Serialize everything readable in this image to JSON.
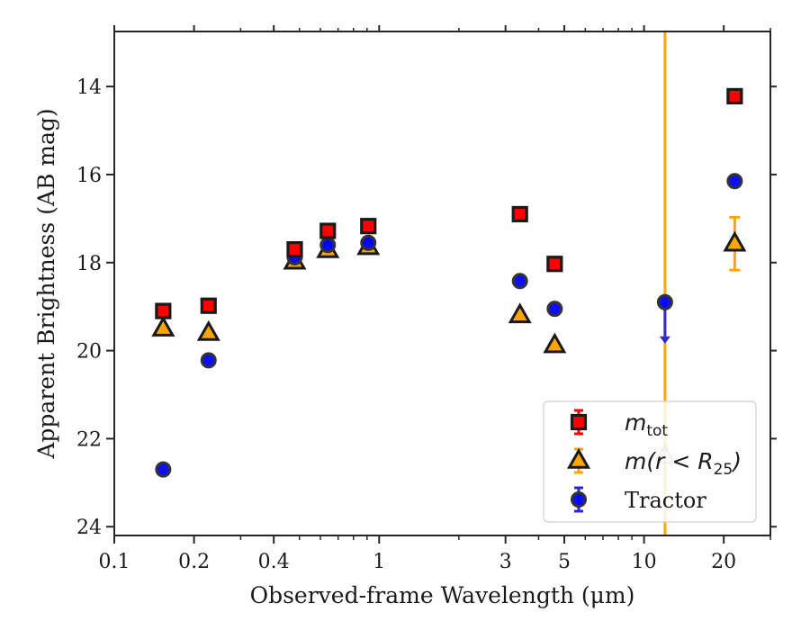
{
  "chart_data": {
    "type": "scatter",
    "xlabel": "Observed-frame Wavelength (μm)",
    "ylabel": "Apparent Brightness (AB mag)",
    "xscale": "log",
    "xlim": [
      0.1,
      30
    ],
    "ylim": [
      24.2,
      12.75
    ],
    "y_inverted": true,
    "x_ticks": [
      0.1,
      0.2,
      0.4,
      1,
      3,
      5,
      10,
      20
    ],
    "x_tick_labels": [
      "0.1",
      "0.2",
      "0.4",
      "1",
      "3",
      "5",
      "10",
      "20"
    ],
    "y_ticks": [
      14,
      16,
      18,
      20,
      22,
      24
    ],
    "y_tick_labels": [
      "14",
      "16",
      "18",
      "20",
      "22",
      "24"
    ],
    "grid": false,
    "legend_position": "lower-right",
    "series": [
      {
        "label_main": "m",
        "label_sub": "tot",
        "marker": "square",
        "color": "#ff0000",
        "edge_color": "#1a1a1a",
        "points": [
          {
            "x": 0.153,
            "y": 19.1
          },
          {
            "x": 0.227,
            "y": 18.98
          },
          {
            "x": 0.48,
            "y": 17.7
          },
          {
            "x": 0.64,
            "y": 17.28
          },
          {
            "x": 0.91,
            "y": 17.17
          },
          {
            "x": 3.4,
            "y": 16.9
          },
          {
            "x": 4.6,
            "y": 18.03
          },
          {
            "x": 22.0,
            "y": 14.22
          }
        ]
      },
      {
        "label_main": "m(r < R",
        "label_sub": "25",
        "label_end": ")",
        "marker": "triangle",
        "color": "#ffa500",
        "edge_color": "#1a1a1a",
        "points": [
          {
            "x": 0.153,
            "y": 19.5
          },
          {
            "x": 0.227,
            "y": 19.6
          },
          {
            "x": 0.48,
            "y": 17.98
          },
          {
            "x": 0.64,
            "y": 17.72
          },
          {
            "x": 0.91,
            "y": 17.65
          },
          {
            "x": 3.4,
            "y": 19.2
          },
          {
            "x": 4.6,
            "y": 19.88
          },
          {
            "x": 12.0,
            "y": 22.4,
            "err_lo": 30,
            "err_hi": 30
          },
          {
            "x": 22.0,
            "y": 17.57,
            "err_lo": 0.6,
            "err_hi": 0.6
          }
        ]
      },
      {
        "label_main": "Tractor",
        "marker": "circle",
        "color": "#0000ff",
        "edge_color": "#333333",
        "points": [
          {
            "x": 0.153,
            "y": 22.7
          },
          {
            "x": 0.227,
            "y": 20.22
          },
          {
            "x": 0.48,
            "y": 17.88
          },
          {
            "x": 0.64,
            "y": 17.6
          },
          {
            "x": 0.91,
            "y": 17.55
          },
          {
            "x": 3.4,
            "y": 18.42
          },
          {
            "x": 4.6,
            "y": 19.05
          },
          {
            "x": 12.0,
            "y": 18.9,
            "upper_limit": true
          },
          {
            "x": 22.0,
            "y": 16.15
          }
        ]
      }
    ]
  }
}
